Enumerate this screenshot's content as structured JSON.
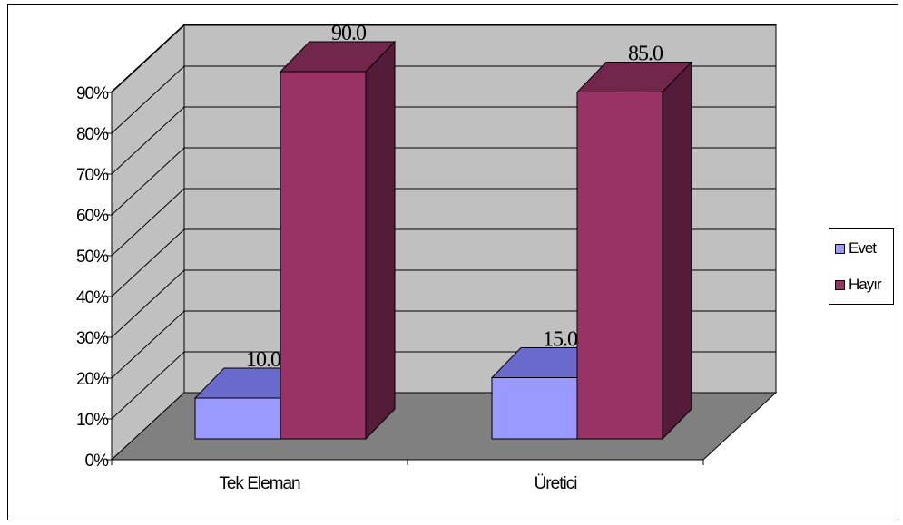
{
  "chart_data": {
    "type": "bar",
    "categories": [
      "Tek Eleman",
      "Üretici"
    ],
    "series": [
      {
        "name": "Evet",
        "values": [
          10.0,
          15.0
        ],
        "labels": [
          "10.0",
          "15.0"
        ],
        "color": "#9999FF",
        "top_color": "#6A6ACC"
      },
      {
        "name": "Hayır",
        "values": [
          90.0,
          85.0
        ],
        "labels": [
          "90.0",
          "85.0"
        ],
        "color": "#993366",
        "top_color": "#73264C"
      }
    ],
    "y_ticks": [
      "0%",
      "10%",
      "20%",
      "30%",
      "40%",
      "50%",
      "60%",
      "70%",
      "80%",
      "90%"
    ],
    "ylim": [
      0,
      100
    ],
    "grid": true,
    "three_d": true,
    "legend_position": "right",
    "wall_color": "#C0C0C0",
    "floor_color": "#808080"
  }
}
